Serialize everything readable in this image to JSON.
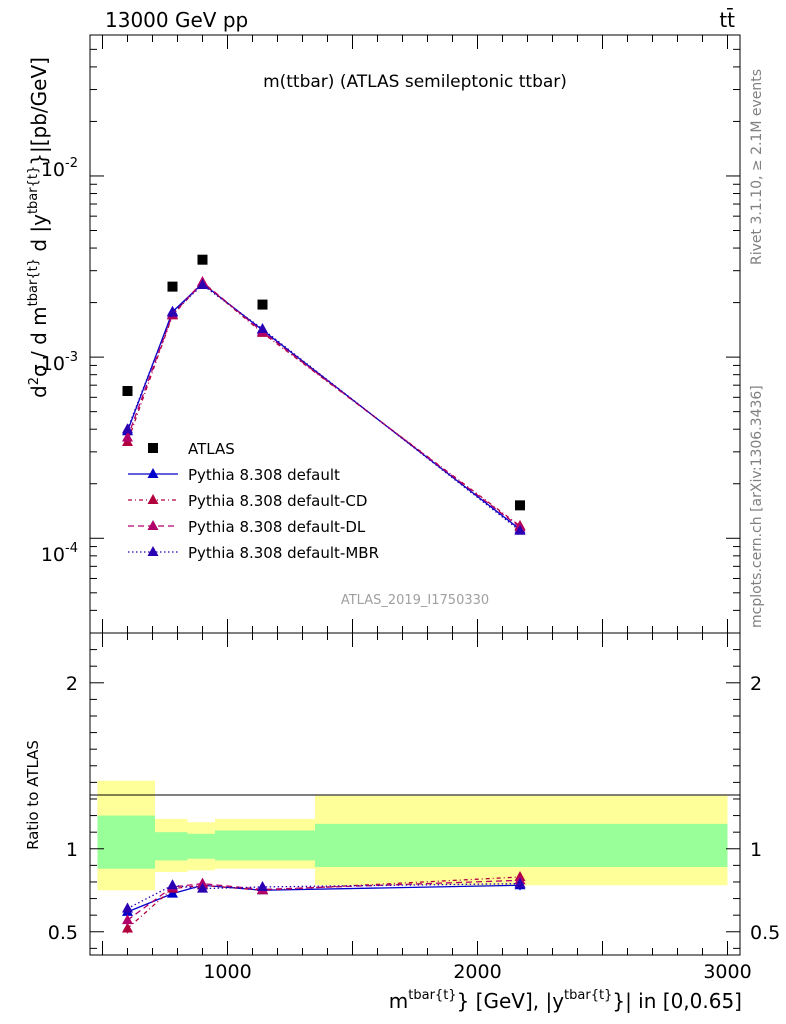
{
  "header": {
    "energy_label": "13000 GeV pp",
    "process_label": "tt̄"
  },
  "side_labels": {
    "rivet": "Rivet 3.1.10, ≥ 2.1M events",
    "mcplots": "mcplots.cern.ch [arXiv:1306.3436]"
  },
  "colors": {
    "data": "#000000",
    "default": "#0000cc",
    "cd": "#b2003f",
    "dl": "#b2006b",
    "mbr": "#2b00b2",
    "band_outer": "#ffff99",
    "band_inner": "#99ff99"
  },
  "chart_data": [
    {
      "type": "scatter",
      "title": "m(ttbar) (ATLAS semileptonic ttbar)",
      "analysis_id": "ATLAS_2019_I1750330",
      "ylabel": "d²σ / d m^{tbar{t}} d |y^{tbar{t}}|[pb/GeV]",
      "xlim": [
        450,
        3050
      ],
      "ylim": [
        3e-05,
        0.06
      ],
      "yscale": "log",
      "y_ticks": [
        "10^{-4}",
        "10^{-3}",
        "10^{-2}"
      ],
      "x": [
        600,
        780,
        900,
        1140,
        2170
      ],
      "series": [
        {
          "name": "ATLAS",
          "values": [
            0.00065,
            0.00245,
            0.00345,
            0.00195,
            0.000152
          ]
        },
        {
          "name": "Pythia 8.308 default",
          "values": [
            0.00039,
            0.00178,
            0.00255,
            0.00141,
            0.000112
          ]
        },
        {
          "name": "Pythia 8.308 default-CD",
          "values": [
            0.00034,
            0.0017,
            0.00258,
            0.00136,
            0.000117
          ]
        },
        {
          "name": "Pythia 8.308 default-DL",
          "values": [
            0.00036,
            0.00172,
            0.0026,
            0.00138,
            0.000115
          ]
        },
        {
          "name": "Pythia 8.308 default-MBR",
          "values": [
            0.0004,
            0.00176,
            0.0025,
            0.00143,
            0.00011
          ]
        }
      ],
      "legend_position": "lower-left"
    },
    {
      "type": "line",
      "ylabel": "Ratio to ATLAS",
      "xlabel": "m^{tbar{t}} [GeV], |y^{tbar{t}}| in [0,0.65]",
      "xlim": [
        450,
        3050
      ],
      "ylim": [
        0.36,
        2.3
      ],
      "x_ticks": [
        "1000",
        "2000",
        "3000"
      ],
      "y_ticks": [
        "0.5",
        "1",
        "2"
      ],
      "bin_edges": [
        480,
        710,
        840,
        950,
        1350,
        3000
      ],
      "band_outer": [
        [
          0.75,
          1.41
        ],
        [
          0.86,
          1.18
        ],
        [
          0.87,
          1.16
        ],
        [
          0.88,
          1.18
        ],
        [
          0.78,
          1.32
        ]
      ],
      "band_inner": [
        [
          0.88,
          1.2
        ],
        [
          0.93,
          1.1
        ],
        [
          0.94,
          1.09
        ],
        [
          0.93,
          1.11
        ],
        [
          0.89,
          1.15
        ]
      ],
      "x": [
        600,
        780,
        900,
        1140,
        2170
      ],
      "series": [
        {
          "name": "Pythia 8.308 default",
          "values": [
            0.62,
            0.73,
            0.78,
            0.75,
            0.78
          ],
          "err": [
            0.03,
            0.02,
            0.02,
            0.02,
            0.03
          ]
        },
        {
          "name": "Pythia 8.308 default-CD",
          "values": [
            0.52,
            0.76,
            0.78,
            0.75,
            0.83
          ],
          "err": [
            0.03,
            0.02,
            0.02,
            0.02,
            0.03
          ]
        },
        {
          "name": "Pythia 8.308 default-DL",
          "values": [
            0.57,
            0.77,
            0.79,
            0.755,
            0.81
          ],
          "err": [
            0.03,
            0.02,
            0.02,
            0.02,
            0.03
          ]
        },
        {
          "name": "Pythia 8.308 default-MBR",
          "values": [
            0.64,
            0.78,
            0.76,
            0.77,
            0.79
          ],
          "err": [
            0.03,
            0.02,
            0.02,
            0.02,
            0.03
          ]
        }
      ]
    }
  ]
}
